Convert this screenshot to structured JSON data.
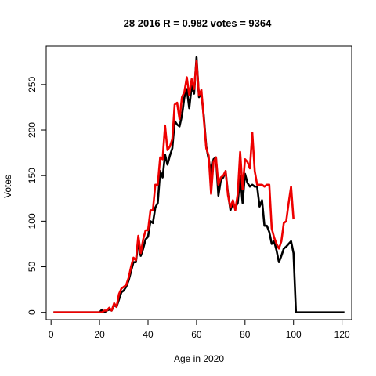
{
  "chart_data": {
    "type": "line",
    "title": "28 2016 R = 0.982 votes = 9364",
    "xlabel": "Age in 2020",
    "ylabel": "Votes",
    "xlim": [
      -2,
      124
    ],
    "ylim": [
      -8,
      292
    ],
    "xticks": [
      0,
      20,
      40,
      60,
      80,
      100,
      120
    ],
    "yticks": [
      0,
      50,
      100,
      150,
      200,
      250
    ],
    "grid": false,
    "series": [
      {
        "color": "#000000",
        "x": [
          1,
          2,
          3,
          4,
          5,
          6,
          7,
          8,
          9,
          10,
          11,
          12,
          13,
          14,
          15,
          16,
          17,
          18,
          19,
          20,
          21,
          22,
          23,
          24,
          25,
          26,
          27,
          28,
          29,
          30,
          31,
          32,
          33,
          34,
          35,
          36,
          37,
          38,
          39,
          40,
          41,
          42,
          43,
          44,
          45,
          46,
          47,
          48,
          49,
          50,
          51,
          52,
          53,
          54,
          55,
          56,
          57,
          58,
          59,
          60,
          61,
          62,
          63,
          64,
          65,
          66,
          67,
          68,
          69,
          70,
          71,
          72,
          73,
          74,
          75,
          76,
          77,
          78,
          79,
          80,
          81,
          82,
          83,
          84,
          85,
          86,
          87,
          88,
          89,
          90,
          91,
          92,
          93,
          94,
          95,
          96,
          97,
          98,
          99,
          100,
          101,
          102,
          103,
          104,
          105,
          106,
          107,
          108,
          109,
          110,
          111,
          112,
          113,
          114,
          115,
          116,
          117,
          118,
          119,
          120,
          121
        ],
        "y": [
          0,
          0,
          0,
          0,
          0,
          0,
          0,
          0,
          0,
          0,
          0,
          0,
          0,
          0,
          0,
          0,
          0,
          0,
          0,
          0,
          3,
          0,
          2,
          3,
          2,
          8,
          6,
          14,
          22,
          24,
          28,
          35,
          45,
          55,
          55,
          77,
          62,
          70,
          80,
          83,
          100,
          98,
          115,
          120,
          155,
          148,
          173,
          162,
          172,
          180,
          210,
          206,
          204,
          216,
          236,
          245,
          224,
          248,
          240,
          280,
          236,
          240,
          215,
          182,
          168,
          152,
          168,
          170,
          128,
          145,
          148,
          155,
          130,
          112,
          120,
          115,
          120,
          150,
          120,
          152,
          142,
          138,
          140,
          138,
          138,
          116,
          123,
          95,
          95,
          88,
          75,
          78,
          68,
          55,
          62,
          70,
          72,
          75,
          78,
          65,
          0,
          0,
          0,
          0,
          0,
          0,
          0,
          0,
          0,
          0,
          0,
          0,
          0,
          0,
          0,
          0,
          0,
          0,
          0,
          0,
          0
        ]
      },
      {
        "color": "#ee0000",
        "x": [
          1,
          2,
          3,
          4,
          5,
          6,
          7,
          8,
          9,
          10,
          11,
          12,
          13,
          14,
          15,
          16,
          17,
          18,
          19,
          20,
          21,
          22,
          23,
          24,
          25,
          26,
          27,
          28,
          29,
          30,
          31,
          32,
          33,
          34,
          35,
          36,
          37,
          38,
          39,
          40,
          41,
          42,
          43,
          44,
          45,
          46,
          47,
          48,
          49,
          50,
          51,
          52,
          53,
          54,
          55,
          56,
          57,
          58,
          59,
          60,
          61,
          62,
          63,
          64,
          65,
          66,
          67,
          68,
          69,
          70,
          71,
          72,
          73,
          74,
          75,
          76,
          77,
          78,
          79,
          80,
          81,
          82,
          83,
          84,
          85,
          86,
          87,
          88,
          89,
          90,
          91,
          92,
          93,
          94,
          95,
          96,
          97,
          98,
          99,
          100
        ],
        "y": [
          0,
          0,
          0,
          0,
          0,
          0,
          0,
          0,
          0,
          0,
          0,
          0,
          0,
          0,
          0,
          0,
          0,
          0,
          0,
          0,
          0,
          2,
          2,
          5,
          2,
          10,
          6,
          20,
          26,
          28,
          30,
          38,
          50,
          60,
          57,
          84,
          65,
          80,
          90,
          90,
          112,
          112,
          140,
          140,
          170,
          168,
          205,
          178,
          182,
          190,
          228,
          230,
          212,
          236,
          242,
          258,
          238,
          256,
          245,
          276,
          238,
          244,
          212,
          180,
          172,
          130,
          165,
          170,
          140,
          148,
          150,
          155,
          128,
          115,
          123,
          112,
          130,
          176,
          135,
          168,
          165,
          158,
          197,
          155,
          140,
          140,
          140,
          138,
          140,
          140,
          92,
          82,
          75,
          70,
          78,
          98,
          100,
          120,
          138,
          102
        ]
      }
    ]
  }
}
